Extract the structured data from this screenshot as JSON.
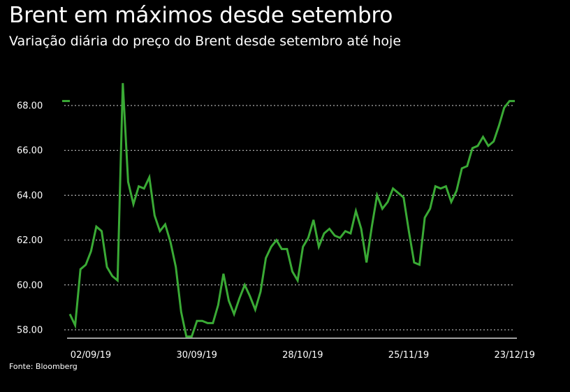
{
  "header": {
    "title": "Brent em máximos desde setembro",
    "subtitle": "Variação diária do preço do Brent desde setembro até hoje"
  },
  "footer": {
    "source": "Fonte: Bloomberg"
  },
  "colors": {
    "background": "#000000",
    "line": "#3aaa35",
    "text": "#ffffff",
    "grid": "#ffffff"
  },
  "chart_data": {
    "type": "line",
    "title": "Brent em máximos desde setembro",
    "subtitle": "Variação diária do preço do Brent desde setembro até hoje",
    "xlabel": "",
    "ylabel": "",
    "ylim": [
      57.7,
      69.0
    ],
    "yticks": [
      "58.00",
      "60.00",
      "62.00",
      "64.00",
      "66.00",
      "68.00"
    ],
    "xticks": [
      "02/09/19",
      "30/09/19",
      "28/10/19",
      "25/11/19",
      "23/12/19"
    ],
    "grid": "horizontal dotted",
    "legend": "none",
    "series": [
      {
        "values": [
          58.7,
          58.2,
          60.7,
          60.9,
          61.5,
          62.6,
          62.4,
          60.8,
          60.4,
          60.2,
          69.0,
          64.6,
          63.6,
          64.4,
          64.3,
          64.8,
          63.1,
          62.4,
          62.7,
          61.9,
          60.8,
          58.8,
          57.7,
          57.7,
          58.4,
          58.4,
          58.3,
          58.3,
          59.1,
          60.5,
          59.3,
          58.7,
          59.4,
          60.0,
          59.5,
          58.9,
          59.7,
          61.2,
          61.7,
          62.0,
          61.6,
          61.6,
          60.6,
          60.2,
          61.7,
          62.1,
          62.9,
          61.7,
          62.3,
          62.5,
          62.2,
          62.1,
          62.4,
          62.3,
          63.3,
          62.5,
          61.0,
          62.6,
          64.0,
          63.4,
          63.7,
          64.3,
          64.1,
          63.9,
          62.4,
          61.0,
          60.9,
          63.0,
          63.4,
          64.4,
          64.3,
          64.4,
          63.7,
          64.2,
          65.2,
          65.3,
          66.1,
          66.2,
          66.6,
          66.2,
          66.4,
          67.1,
          67.9,
          68.2,
          68.2
        ]
      }
    ]
  }
}
